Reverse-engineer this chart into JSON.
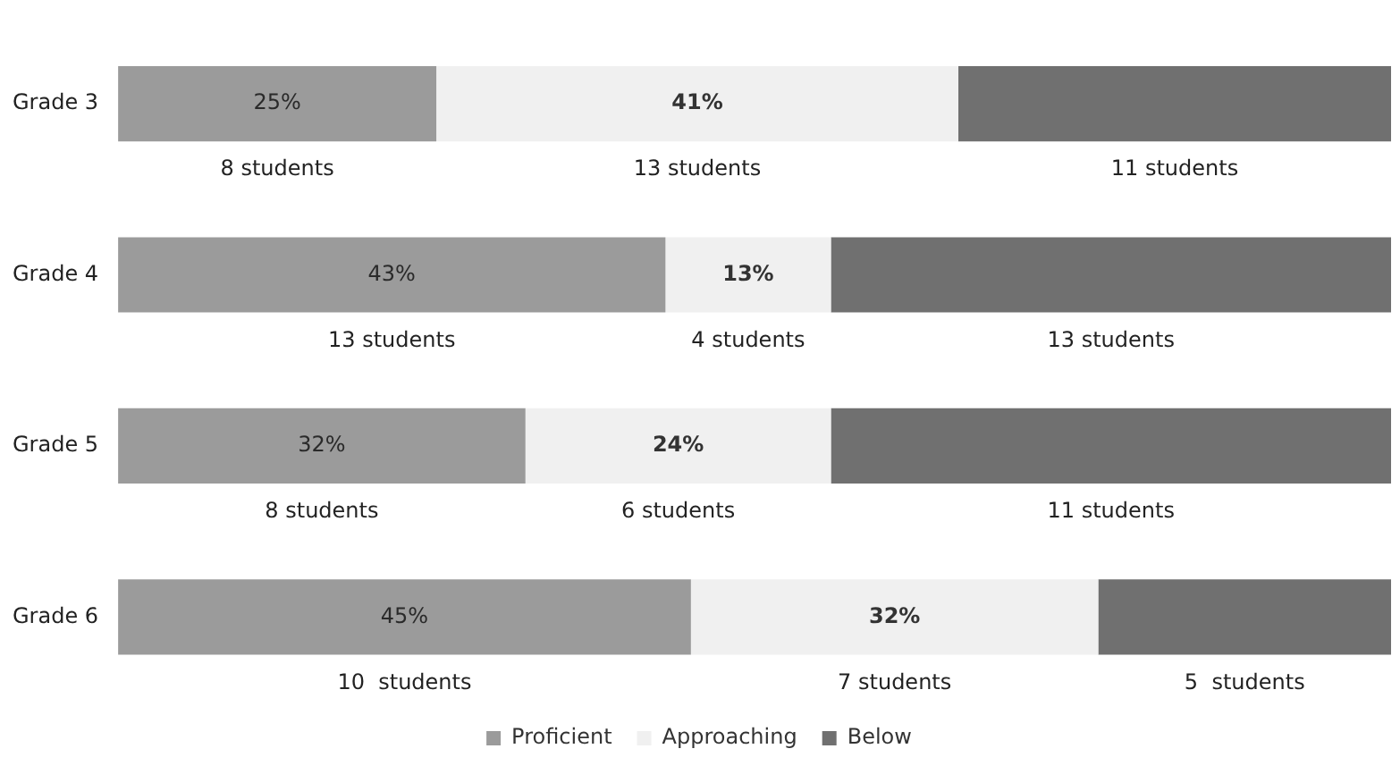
{
  "chart_data": {
    "type": "bar",
    "orientation": "horizontal",
    "stacked": true,
    "categories": [
      "Grade 3",
      "Grade 4",
      "Grade 5",
      "Grade 6"
    ],
    "series": [
      {
        "name": "Proficient",
        "color": "#9b9b9b",
        "values": [
          25,
          43,
          32,
          45
        ],
        "value_labels": [
          "25%",
          "43%",
          "32%",
          "45%"
        ]
      },
      {
        "name": "Approaching",
        "color": "#f0f0f0",
        "values": [
          41,
          13,
          24,
          32
        ],
        "value_labels": [
          "41%",
          "13%",
          "24%",
          "32%"
        ]
      },
      {
        "name": "Below",
        "color": "#707070",
        "values": [
          34,
          44,
          44,
          23
        ]
      }
    ],
    "xlim": [
      0,
      100
    ],
    "tick_labels": "y",
    "grid": false,
    "legend": "bottom",
    "annotations": [
      "8 students",
      "13 students",
      "11 students",
      "13 students",
      "4 students",
      "13 students",
      "8 students",
      "6 students",
      "11 students",
      "10  students",
      "7 students",
      "5  students"
    ]
  }
}
